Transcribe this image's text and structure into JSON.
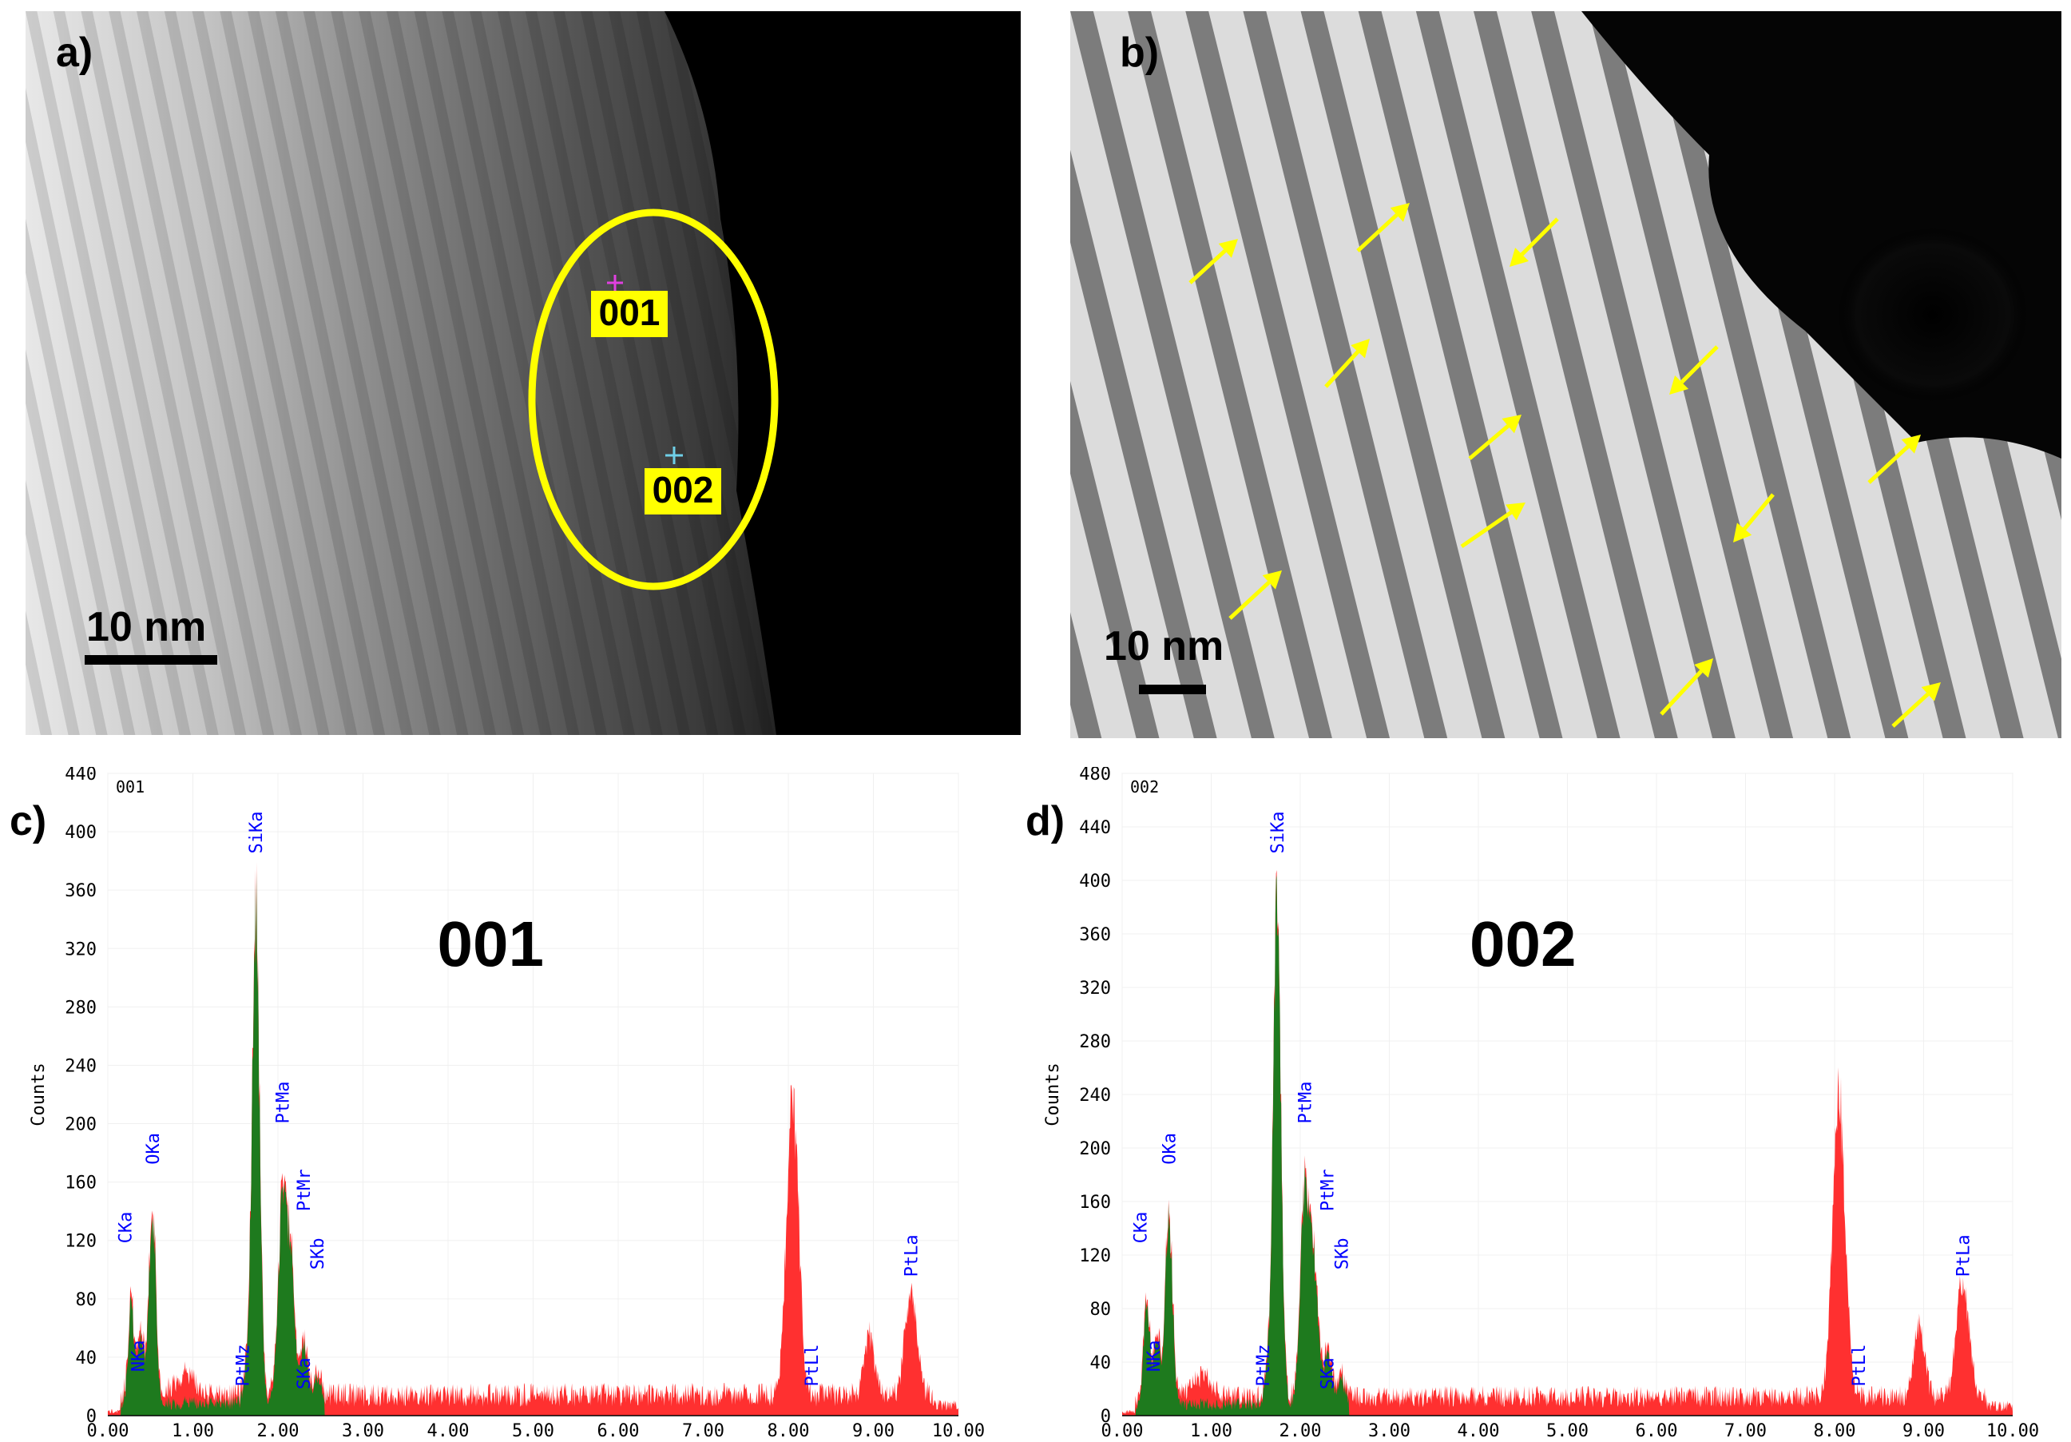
{
  "panels": {
    "a": {
      "letter": "a)",
      "scale_bar": "10 nm",
      "spot_labels": [
        "001",
        "002"
      ],
      "colors": {
        "spot1": "#e040e0",
        "spot2": "#6fd0e8",
        "ellipse": "#ffff00",
        "label_bg": "#ffff00"
      }
    },
    "b": {
      "letter": "b)",
      "scale_bar": "10 nm",
      "arrow_color": "#ffff00"
    },
    "c": {
      "letter": "c)"
    },
    "d": {
      "letter": "d)"
    }
  },
  "chart_data": [
    {
      "type": "area",
      "panel": "c",
      "corner_label": "001",
      "big_label": "001",
      "ylabel": "Counts",
      "xlim": [
        0,
        10
      ],
      "ylim": [
        0,
        440
      ],
      "yticks": [
        0,
        40,
        80,
        120,
        160,
        200,
        240,
        280,
        320,
        360,
        400,
        440
      ],
      "xticks": [
        "0.00",
        "1.00",
        "2.00",
        "3.00",
        "4.00",
        "5.00",
        "6.00",
        "7.00",
        "8.00",
        "9.00",
        "10.00"
      ],
      "colors": {
        "background": "#ff3030",
        "fitted": "#1e7a1e",
        "peak_label": "#0000ff"
      },
      "background": 15,
      "peaks": [
        {
          "x": 0.277,
          "y": 70,
          "w": 0.035,
          "fit": true
        },
        {
          "x": 0.392,
          "y": 45,
          "w": 0.035,
          "fit": true
        },
        {
          "x": 0.525,
          "y": 135,
          "w": 0.04,
          "fit": true
        },
        {
          "x": 1.739,
          "y": 340,
          "w": 0.045,
          "fit": true
        },
        {
          "x": 1.62,
          "y": 18,
          "w": 0.03,
          "fit": true
        },
        {
          "x": 2.05,
          "y": 130,
          "w": 0.05,
          "fit": true
        },
        {
          "x": 2.15,
          "y": 90,
          "w": 0.05,
          "fit": true
        },
        {
          "x": 2.31,
          "y": 40,
          "w": 0.04,
          "fit": true
        },
        {
          "x": 2.46,
          "y": 20,
          "w": 0.04,
          "fit": true
        },
        {
          "x": 0.9,
          "y": 15,
          "w": 0.12,
          "fit": false
        },
        {
          "x": 8.05,
          "y": 210,
          "w": 0.07,
          "fit": false
        },
        {
          "x": 8.95,
          "y": 42,
          "w": 0.06,
          "fit": false
        },
        {
          "x": 9.44,
          "y": 70,
          "w": 0.07,
          "fit": false
        }
      ],
      "peak_labels": [
        {
          "text": "CKa",
          "x": 0.2
        },
        {
          "text": "NKa",
          "x": 0.35
        },
        {
          "text": "OKa",
          "x": 0.525
        },
        {
          "text": "SiKa",
          "x": 1.739
        },
        {
          "text": "PtMz",
          "x": 1.58
        },
        {
          "text": "PtMa",
          "x": 2.05
        },
        {
          "text": "PtMr",
          "x": 2.3
        },
        {
          "text": "SKa",
          "x": 2.3
        },
        {
          "text": "SKb",
          "x": 2.46
        },
        {
          "text": "PtLl",
          "x": 8.27
        },
        {
          "text": "PtLa",
          "x": 9.44
        }
      ]
    },
    {
      "type": "area",
      "panel": "d",
      "corner_label": "002",
      "big_label": "002",
      "ylabel": "Counts",
      "xlim": [
        0,
        10
      ],
      "ylim": [
        0,
        480
      ],
      "yticks": [
        0,
        40,
        80,
        120,
        160,
        200,
        240,
        280,
        320,
        360,
        400,
        440,
        480
      ],
      "xticks": [
        "0.00",
        "1.00",
        "2.00",
        "3.00",
        "4.00",
        "5.00",
        "6.00",
        "7.00",
        "8.00",
        "9.00",
        "10.00"
      ],
      "colors": {
        "background": "#ff3030",
        "fitted": "#1e7a1e",
        "peak_label": "#0000ff"
      },
      "background": 15,
      "peaks": [
        {
          "x": 0.277,
          "y": 80,
          "w": 0.035,
          "fit": true
        },
        {
          "x": 0.392,
          "y": 50,
          "w": 0.035,
          "fit": true
        },
        {
          "x": 0.525,
          "y": 145,
          "w": 0.04,
          "fit": true
        },
        {
          "x": 1.739,
          "y": 370,
          "w": 0.045,
          "fit": true
        },
        {
          "x": 1.62,
          "y": 20,
          "w": 0.03,
          "fit": true
        },
        {
          "x": 2.05,
          "y": 155,
          "w": 0.05,
          "fit": true
        },
        {
          "x": 2.15,
          "y": 100,
          "w": 0.05,
          "fit": true
        },
        {
          "x": 2.31,
          "y": 40,
          "w": 0.04,
          "fit": true
        },
        {
          "x": 2.46,
          "y": 20,
          "w": 0.04,
          "fit": true
        },
        {
          "x": 0.9,
          "y": 16,
          "w": 0.12,
          "fit": false
        },
        {
          "x": 8.05,
          "y": 225,
          "w": 0.07,
          "fit": false
        },
        {
          "x": 8.95,
          "y": 55,
          "w": 0.06,
          "fit": false
        },
        {
          "x": 9.44,
          "y": 88,
          "w": 0.07,
          "fit": false
        }
      ],
      "peak_labels": [
        {
          "text": "CKa",
          "x": 0.2
        },
        {
          "text": "NKa",
          "x": 0.35
        },
        {
          "text": "OKa",
          "x": 0.525
        },
        {
          "text": "SiKa",
          "x": 1.739
        },
        {
          "text": "PtMz",
          "x": 1.58
        },
        {
          "text": "PtMa",
          "x": 2.05
        },
        {
          "text": "PtMr",
          "x": 2.3
        },
        {
          "text": "SKa",
          "x": 2.3
        },
        {
          "text": "SKb",
          "x": 2.46
        },
        {
          "text": "PtLl",
          "x": 8.27
        },
        {
          "text": "PtLa",
          "x": 9.44
        }
      ]
    }
  ]
}
